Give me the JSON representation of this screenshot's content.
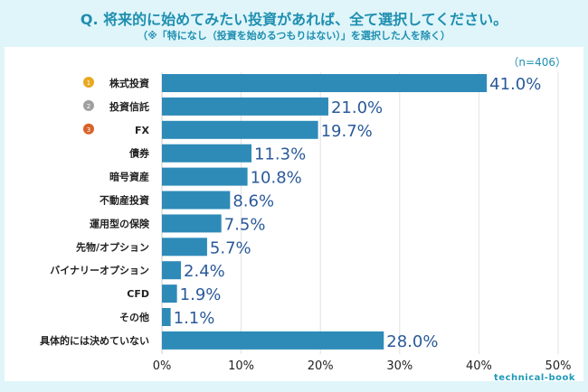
{
  "chart_data": {
    "type": "bar",
    "orientation": "horizontal",
    "title": "Q. 将来的に始めてみたい投資があれば、全て選択してください。",
    "subtitle": "（※「特になし（投資を始めるつもりはない）」を選択した人を除く）",
    "sample_note": "（n=406）",
    "categories": [
      "株式投資",
      "投資信託",
      "FX",
      "債券",
      "暗号資産",
      "不動産投資",
      "運用型の保険",
      "先物/オプション",
      "バイナリーオプション",
      "CFD",
      "その他",
      "具体的には決めていない"
    ],
    "values": [
      41.0,
      21.0,
      19.7,
      11.3,
      10.8,
      8.6,
      7.5,
      5.7,
      2.4,
      1.9,
      1.1,
      28.0
    ],
    "data_labels": [
      "41.0%",
      "21.0%",
      "19.7%",
      "11.3%",
      "10.8%",
      "8.6%",
      "7.5%",
      "5.7%",
      "2.4%",
      "1.9%",
      "1.1%",
      "28.0%"
    ],
    "rank_badges": [
      "1",
      "2",
      "3"
    ],
    "xlim": [
      0,
      50
    ],
    "xticks": [
      "0%",
      "10%",
      "20%",
      "30%",
      "40%",
      "50%"
    ],
    "grid": true,
    "colors": {
      "bar": "#2e8bb8",
      "label": "#2a5a9a",
      "rank1": "#e8a820",
      "rank2": "#a0a0a0",
      "rank3": "#d8622a"
    }
  },
  "watermark": "technical-book"
}
